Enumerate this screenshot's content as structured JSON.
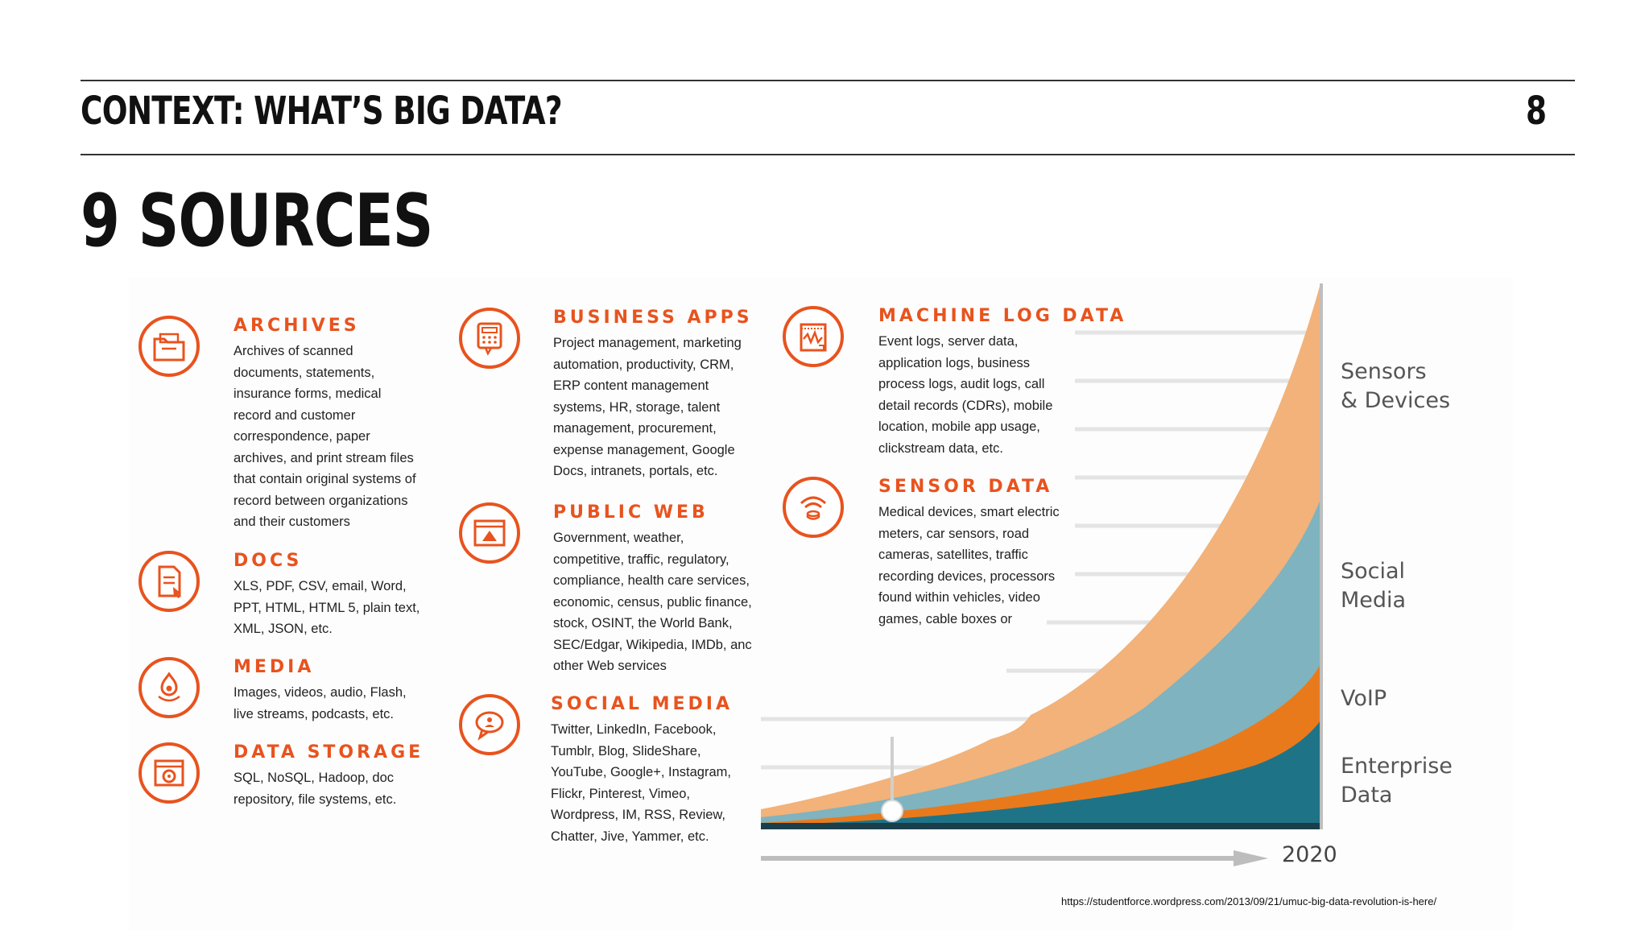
{
  "header": {
    "title": "CONTEXT: WHAT’S BIG DATA?",
    "page_number": "8"
  },
  "slide_title": "9 SOURCES",
  "sources": [
    {
      "title": "ARCHIVES",
      "icon": "folder-icon",
      "lines": [
        "Archives of scanned",
        "documents, statements,",
        "insurance forms, medical",
        "record and customer",
        "correspondence, paper",
        "archives, and print stream files",
        "that contain original systems of",
        "record between organizations",
        "and their customers"
      ]
    },
    {
      "title": "DOCS",
      "icon": "document-icon",
      "lines": [
        "XLS, PDF, CSV, email, Word,",
        "PPT, HTML, HTML 5, plain text,",
        "XML, JSON, etc."
      ]
    },
    {
      "title": "MEDIA",
      "icon": "media-icon",
      "lines": [
        "Images, videos, audio, Flash,",
        "live streams, podcasts, etc."
      ]
    },
    {
      "title": "DATA STORAGE",
      "icon": "storage-icon",
      "lines": [
        "SQL, NoSQL, Hadoop, doc",
        "repository, file systems, etc."
      ]
    },
    {
      "title": "BUSINESS APPS",
      "icon": "calculator-icon",
      "lines": [
        "Project management, marketing",
        "automation, productivity, CRM,",
        "ERP content management",
        "systems, HR, storage, talent",
        "management, procurement,",
        "expense management, Google",
        "Docs, intranets, portals, etc."
      ]
    },
    {
      "title": "PUBLIC WEB",
      "icon": "browser-icon",
      "lines": [
        "Government, weather,",
        "competitive, traffic, regulatory,",
        "compliance, health care services,",
        "economic, census, public finance,",
        "stock, OSINT, the World Bank,",
        "SEC/Edgar, Wikipedia, IMDb, anc",
        "other Web services"
      ]
    },
    {
      "title": "SOCIAL MEDIA",
      "icon": "chat-bubble-icon",
      "lines": [
        "Twitter, LinkedIn, Facebook,",
        "Tumblr, Blog, SlideShare,",
        "YouTube, Google+, Instagram,",
        "Flickr, Pinterest, Vimeo,",
        "Wordpress, IM, RSS, Review,",
        "Chatter, Jive, Yammer, etc."
      ]
    },
    {
      "title": "MACHINE LOG DATA",
      "icon": "log-chart-icon",
      "lines": [
        "Event logs, server data,",
        "application logs, business",
        "process logs, audit logs, call",
        "detail records (CDRs), mobile",
        "location, mobile app usage,",
        "clickstream data, etc."
      ]
    },
    {
      "title": "SENSOR DATA",
      "icon": "sensor-icon",
      "lines": [
        "Medical devices, smart electric",
        "meters, car sensors, road",
        "cameras, satellites, traffic",
        "recording devices, processors",
        "found within vehicles, video",
        "games, cable boxes or"
      ]
    }
  ],
  "chart": {
    "series": [
      {
        "name": "Sensors\n& Devices",
        "color": "#f2b27a"
      },
      {
        "name": "Social\nMedia",
        "color": "#7fb3bf"
      },
      {
        "name": "VoIP",
        "color": "#e87a1c"
      },
      {
        "name": "Enterprise\nData",
        "color": "#1f7387"
      }
    ],
    "year_label": "2020"
  },
  "citation": "https://studentforce.wordpress.com/2013/09/21/umuc-big-data-revolution-is-here/"
}
